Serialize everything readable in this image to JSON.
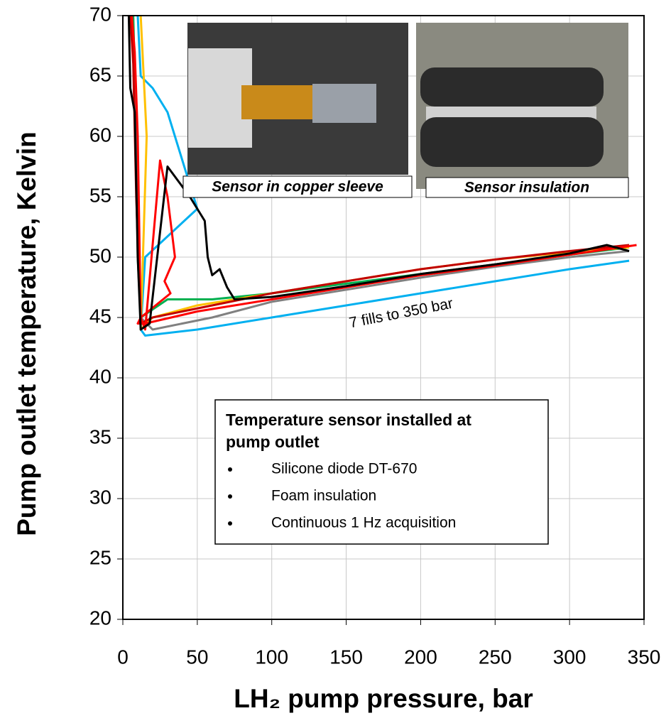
{
  "chart_data": {
    "type": "line",
    "xlabel": "LH₂ pump pressure, bar",
    "ylabel": "Pump outlet temperature, Kelvin",
    "xlim": [
      0,
      350
    ],
    "xticks": [
      0,
      50,
      100,
      150,
      200,
      250,
      300,
      350
    ],
    "ylim": [
      20,
      70
    ],
    "yticks": [
      20,
      25,
      30,
      35,
      40,
      45,
      50,
      55,
      60,
      65,
      70
    ],
    "grid": true,
    "annotation": "7 fills to 350 bar",
    "photo_captions": [
      "Sensor in copper sleeve",
      "Sensor insulation"
    ],
    "info_box": {
      "title": "Temperature sensor installed at pump outlet",
      "items": [
        "Silicone diode DT-670",
        "Foam insulation",
        "Continuous 1 Hz acquisition"
      ]
    },
    "series": [
      {
        "color": "#00b0f0",
        "x": [
          10,
          12,
          20,
          30,
          40,
          50,
          15,
          12,
          15,
          50,
          100,
          150,
          200,
          250,
          300,
          340
        ],
        "values": [
          70,
          65,
          64,
          62,
          58,
          54,
          50,
          44,
          43.5,
          44,
          45,
          46,
          47,
          48,
          49,
          49.7
        ]
      },
      {
        "color": "#00b050",
        "x": [
          7,
          9,
          10,
          12,
          30,
          60,
          100,
          150,
          200,
          250,
          300,
          340
        ],
        "values": [
          70,
          60,
          50,
          45,
          46.5,
          46.5,
          47,
          47.8,
          48.6,
          49.4,
          50.2,
          50.8
        ]
      },
      {
        "color": "#808080",
        "x": [
          8,
          10,
          12,
          20,
          60,
          100,
          150,
          200,
          250,
          300,
          340
        ],
        "values": [
          65,
          55,
          45,
          44,
          45,
          46.3,
          47.3,
          48.3,
          49.2,
          50,
          50.5
        ]
      },
      {
        "color": "#ffc000",
        "x": [
          12,
          14,
          16,
          14,
          12,
          20,
          50,
          100,
          150,
          200,
          250,
          300,
          340
        ],
        "values": [
          70,
          65,
          60,
          52,
          44,
          45,
          46,
          47,
          48,
          49,
          49.8,
          50.4,
          50.8
        ]
      },
      {
        "color": "#c00000",
        "x": [
          5,
          7,
          9,
          12,
          20,
          60,
          100,
          150,
          200,
          250,
          300,
          340
        ],
        "values": [
          70,
          66,
          55,
          44.5,
          45,
          46,
          47,
          48,
          49,
          49.8,
          50.5,
          51
        ]
      },
      {
        "color": "#ff0000",
        "x": [
          6,
          8,
          10,
          12,
          15,
          25,
          30,
          35,
          28,
          32,
          12,
          10,
          15,
          50,
          100,
          150,
          200,
          250,
          300,
          345
        ],
        "values": [
          70,
          67,
          60,
          45,
          44,
          58,
          55,
          50,
          48,
          47,
          45,
          44.5,
          44.5,
          45.5,
          46.5,
          47.5,
          48.5,
          49.3,
          50.2,
          51
        ]
      },
      {
        "color": "#000000",
        "x": [
          4,
          5,
          8,
          10,
          12,
          18,
          30,
          45,
          55,
          57,
          60,
          65,
          70,
          75,
          100,
          150,
          200,
          250,
          300,
          325,
          340
        ],
        "values": [
          70,
          64,
          62,
          50,
          44,
          44.5,
          57.5,
          55,
          53,
          50,
          48.5,
          49,
          47.5,
          46.5,
          46.7,
          47.6,
          48.6,
          49.4,
          50.3,
          51,
          50.5
        ]
      }
    ]
  }
}
